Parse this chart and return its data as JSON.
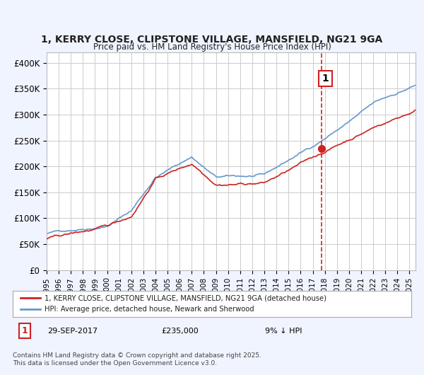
{
  "title_line1": "1, KERRY CLOSE, CLIPSTONE VILLAGE, MANSFIELD, NG21 9GA",
  "title_line2": "Price paid vs. HM Land Registry's House Price Index (HPI)",
  "xlabel": "",
  "ylabel": "",
  "ylim": [
    0,
    420000
  ],
  "yticks": [
    0,
    50000,
    100000,
    150000,
    200000,
    250000,
    300000,
    350000,
    400000
  ],
  "ytick_labels": [
    "£0",
    "£50K",
    "£100K",
    "£150K",
    "£200K",
    "£250K",
    "£300K",
    "£350K",
    "£400K"
  ],
  "xlim_start": 1995.0,
  "xlim_end": 2025.5,
  "hpi_color": "#6699cc",
  "price_color": "#cc2222",
  "marker_color": "#cc2222",
  "vline_color": "#cc2222",
  "sale_date": 2017.75,
  "sale_price": 235000,
  "annotation_label": "1",
  "legend_label1": "1, KERRY CLOSE, CLIPSTONE VILLAGE, MANSFIELD, NG21 9GA (detached house)",
  "legend_label2": "HPI: Average price, detached house, Newark and Sherwood",
  "footer_line1": "Contains HM Land Registry data © Crown copyright and database right 2025.",
  "footer_line2": "This data is licensed under the Open Government Licence v3.0.",
  "table_label": "1",
  "table_date": "29-SEP-2017",
  "table_price": "£235,000",
  "table_hpi": "9% ↓ HPI",
  "bg_color": "#f0f4ff",
  "plot_bg_color": "#ffffff",
  "grid_color": "#cccccc"
}
